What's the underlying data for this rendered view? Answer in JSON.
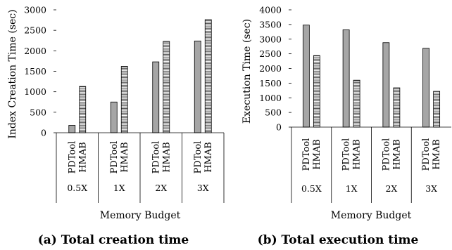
{
  "chart_data": [
    {
      "type": "bar",
      "caption": "(a) Total creation time",
      "ylabel": "Index Creation Time (sec)",
      "xlabel": "Memory Budget",
      "categories": [
        "0.5X",
        "1X",
        "2X",
        "3X"
      ],
      "series": [
        {
          "name": "PDTool",
          "values": [
            180,
            750,
            1730,
            2240
          ],
          "fill": "gray"
        },
        {
          "name": "HMAB",
          "values": [
            1130,
            1620,
            2230,
            2760
          ],
          "fill": "hatched"
        }
      ],
      "yticks": [
        "0",
        "500",
        "1000",
        "1500",
        "2000",
        "2500",
        "3000"
      ],
      "ylim": [
        0,
        3000
      ],
      "grid": false
    },
    {
      "type": "bar",
      "caption": "(b) Total execution time",
      "ylabel": "Execution Time (sec)",
      "xlabel": "Memory Budget",
      "categories": [
        "0.5X",
        "1X",
        "2X",
        "3X"
      ],
      "series": [
        {
          "name": "PDTool",
          "values": [
            3480,
            3320,
            2880,
            2690
          ],
          "fill": "gray"
        },
        {
          "name": "HMAB",
          "values": [
            2440,
            1600,
            1340,
            1220
          ],
          "fill": "hatched"
        }
      ],
      "yticks": [
        "0",
        "500",
        "1000",
        "1500",
        "2000",
        "2500",
        "3000",
        "3500",
        "4000"
      ],
      "ylim": [
        0,
        4000
      ],
      "grid": false
    }
  ],
  "colors": {
    "bar_gray": "#a6a6a6",
    "stroke": "#000000"
  }
}
